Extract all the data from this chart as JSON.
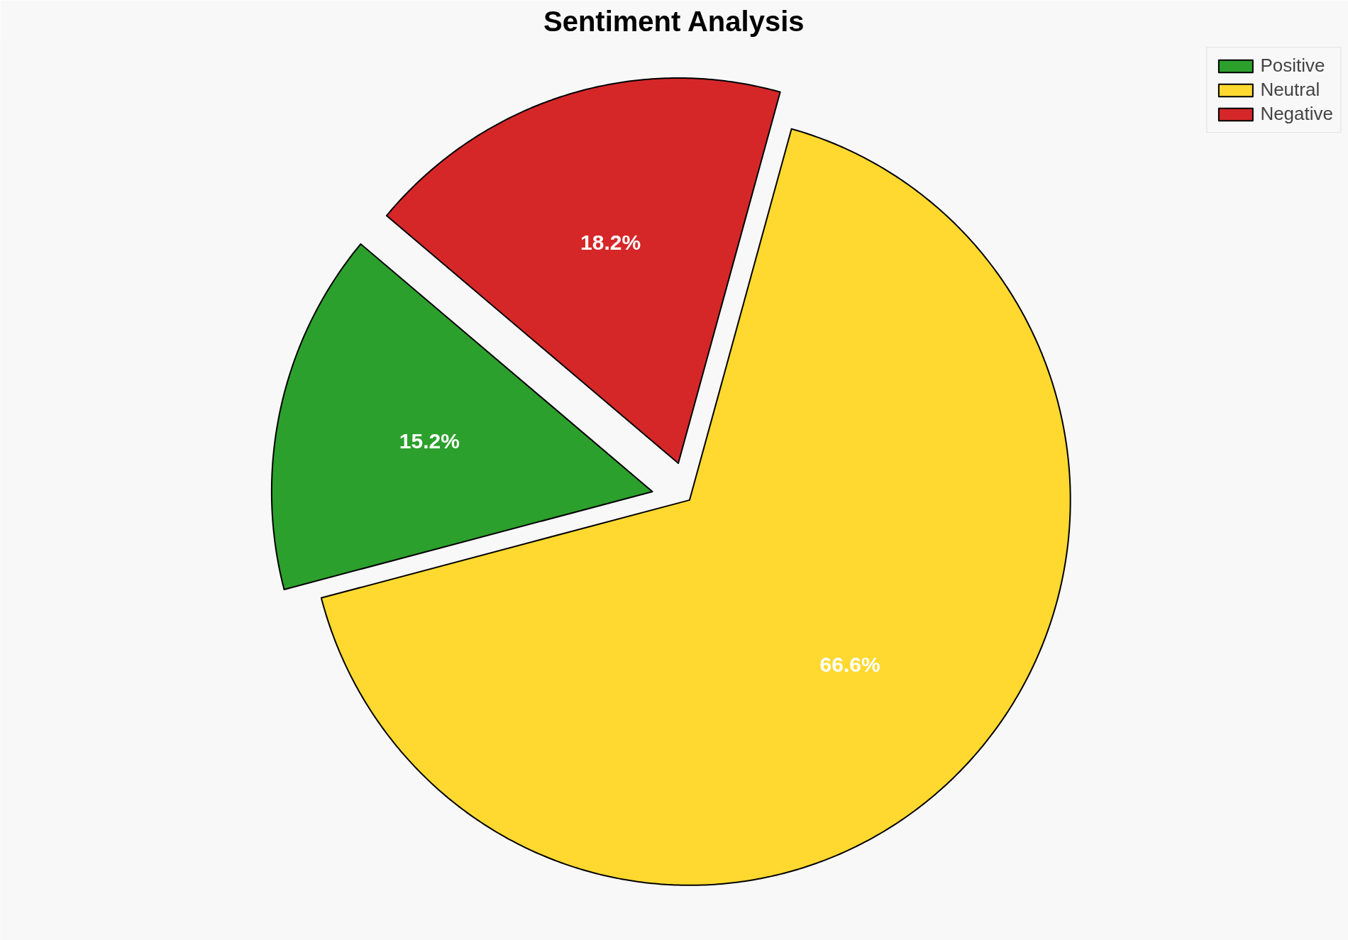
{
  "chart_data": {
    "type": "pie",
    "title": "Sentiment Analysis",
    "categories": [
      "Positive",
      "Neutral",
      "Negative"
    ],
    "values": [
      15.2,
      66.6,
      18.2
    ],
    "colors": [
      "#2ca02c",
      "#ffd92f",
      "#d62728"
    ],
    "value_labels": [
      "15.2%",
      "66.6%",
      "18.2%"
    ],
    "legend": "top right"
  }
}
